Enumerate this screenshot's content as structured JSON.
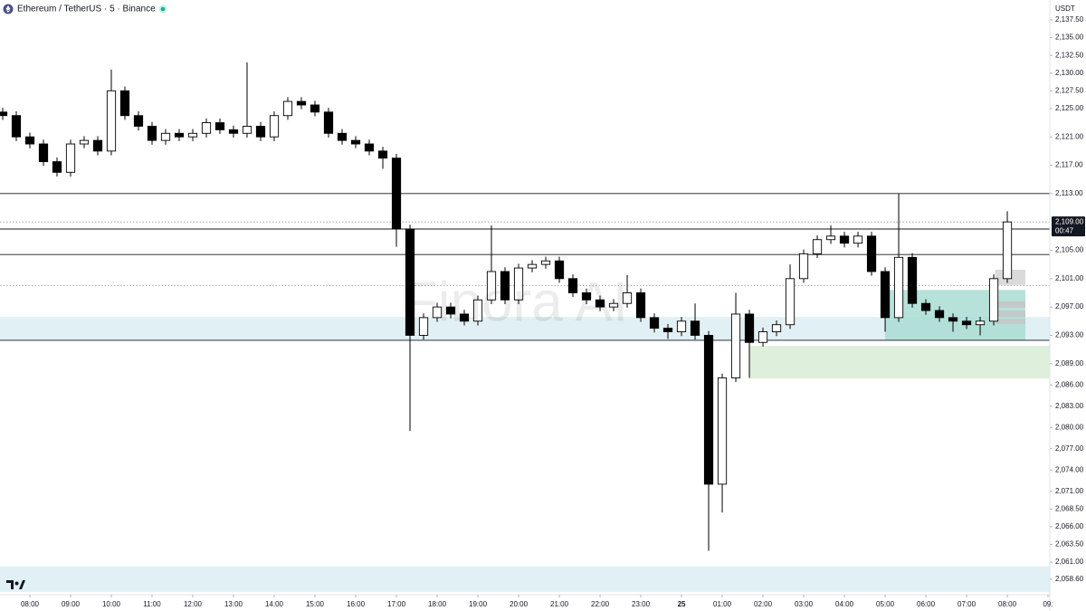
{
  "chart_data": {
    "type": "candlestick",
    "title": "Ethereum / TetherUS · 5 · Binance",
    "currency": "USDT",
    "watermark": "Finora AI",
    "up_color": "#ffffff",
    "down_color": "#000000",
    "wick_color": "#000000",
    "grid": false,
    "xlim": [
      -0.2,
      77.13
    ],
    "ylim": [
      2056.66,
      2140.31
    ],
    "xticks": [
      {
        "value": 2,
        "label": "08:00"
      },
      {
        "value": 5,
        "label": "09:00"
      },
      {
        "value": 8,
        "label": "10:00"
      },
      {
        "value": 11,
        "label": "11:00"
      },
      {
        "value": 14,
        "label": "12:00"
      },
      {
        "value": 17,
        "label": "13:00"
      },
      {
        "value": 20,
        "label": "14:00"
      },
      {
        "value": 23,
        "label": "15:00"
      },
      {
        "value": 26,
        "label": "16:00"
      },
      {
        "value": 29,
        "label": "17:00"
      },
      {
        "value": 32,
        "label": "18:00"
      },
      {
        "value": 35,
        "label": "19:00"
      },
      {
        "value": 38,
        "label": "20:00"
      },
      {
        "value": 41,
        "label": "21:00"
      },
      {
        "value": 44,
        "label": "22:00"
      },
      {
        "value": 47,
        "label": "23:00"
      },
      {
        "value": 50,
        "label": "25"
      },
      {
        "value": 53,
        "label": "01:00"
      },
      {
        "value": 56,
        "label": "02:00"
      },
      {
        "value": 59,
        "label": "03:00"
      },
      {
        "value": 62,
        "label": "04:00"
      },
      {
        "value": 65,
        "label": "05:00"
      },
      {
        "value": 68,
        "label": "06:00"
      },
      {
        "value": 71,
        "label": "07:00"
      },
      {
        "value": 74,
        "label": "08:00"
      },
      {
        "value": 77,
        "label": "09:"
      }
    ],
    "yticks": [
      {
        "value": 2137.5,
        "label": "2,137.50"
      },
      {
        "value": 2135,
        "label": "2,135.00"
      },
      {
        "value": 2132.5,
        "label": "2,132.50"
      },
      {
        "value": 2130,
        "label": "2,130.00"
      },
      {
        "value": 2127.5,
        "label": "2,127.50"
      },
      {
        "value": 2125,
        "label": "2,125.00"
      },
      {
        "value": 2121,
        "label": "2,121.00"
      },
      {
        "value": 2117,
        "label": "2,117.00"
      },
      {
        "value": 2113,
        "label": "2,113.00"
      },
      {
        "value": 2105,
        "label": "2,105.00"
      },
      {
        "value": 2101,
        "label": "2,101.00"
      },
      {
        "value": 2097,
        "label": "2,097.00"
      },
      {
        "value": 2093,
        "label": "2,093.00"
      },
      {
        "value": 2089,
        "label": "2,089.00"
      },
      {
        "value": 2086,
        "label": "2,086.00"
      },
      {
        "value": 2083,
        "label": "2,083.00"
      },
      {
        "value": 2080,
        "label": "2,080.00"
      },
      {
        "value": 2077,
        "label": "2,077.00"
      },
      {
        "value": 2074,
        "label": "2,074.00"
      },
      {
        "value": 2071,
        "label": "2,071.00"
      },
      {
        "value": 2068.5,
        "label": "2,068.50"
      },
      {
        "value": 2066,
        "label": "2,066.00"
      },
      {
        "value": 2063.5,
        "label": "2,063.50"
      },
      {
        "value": 2061,
        "label": "2,061.00"
      },
      {
        "value": 2058.6,
        "label": "2,058.60"
      }
    ],
    "current_price": {
      "value": 2109,
      "label": "2,109.00",
      "countdown": "00:47"
    },
    "levels": [
      {
        "value": 2113,
        "style": "solid"
      },
      {
        "value": 2108,
        "style": "solid"
      },
      {
        "value": 2104.4,
        "style": "solid"
      },
      {
        "value": 2092.3,
        "style": "solid"
      },
      {
        "value": 2109,
        "style": "dotted"
      },
      {
        "value": 2100,
        "style": "dotted"
      }
    ],
    "zones": [
      {
        "y": [
          2092.3,
          2095.6
        ],
        "x": [
          -0.2,
          77.13
        ],
        "color": "#dcedf2"
      },
      {
        "y": [
          2056.8,
          2060.4
        ],
        "x": [
          -0.2,
          77.13
        ],
        "color": "#dcedf2"
      },
      {
        "y": [
          2086.9,
          2091.5
        ],
        "x": [
          55,
          77.13
        ],
        "color": "#d8ecd5"
      },
      {
        "y": [
          2092.3,
          2099.4
        ],
        "x": [
          65,
          75.33
        ],
        "color": "#a9ddd3"
      },
      {
        "y": [
          2100.1,
          2102.25
        ],
        "x": [
          73.1,
          75.33
        ],
        "color": "#d4d4d4"
      },
      {
        "y": [
          2096.9,
          2097.8
        ],
        "x": [
          73.1,
          75.33
        ],
        "color": "#c4c4c4"
      },
      {
        "y": [
          2095.6,
          2096.5
        ],
        "x": [
          73.1,
          75.33
        ],
        "color": "#c4c4c4"
      },
      {
        "y": [
          2094.6,
          2095.3
        ],
        "x": [
          73.1,
          75.33
        ],
        "color": "#c4c4c4"
      }
    ],
    "open": [
      2124.5,
      2124,
      2121,
      2120,
      2117.5,
      2116,
      2120,
      2120.5,
      2119,
      2127.5,
      2124,
      2122.5,
      2120.5,
      2121.5,
      2121,
      2121.5,
      2123,
      2122,
      2121.5,
      2122.5,
      2121,
      2124,
      2126,
      2125.5,
      2124.5,
      2121.5,
      2120.5,
      2120,
      2119,
      2118,
      2108,
      2093,
      2095.5,
      2097,
      2096,
      2095,
      2098,
      2102,
      2098,
      2102.5,
      2103,
      2103.5,
      2101,
      2099,
      2098,
      2097,
      2097.5,
      2099,
      2095.5,
      2094,
      2093.5,
      2095,
      2093,
      2072,
      2087,
      2096,
      2092,
      2093.5,
      2094.5,
      2101,
      2104.5,
      2106.5,
      2107,
      2106,
      2107,
      2102,
      2095.5,
      2104,
      2097.5,
      2096.5,
      2095.5,
      2095,
      2094.5,
      2095,
      2101
    ],
    "high": [
      2125.1,
      2124.6,
      2121.6,
      2120.6,
      2118.1,
      2120.6,
      2121.1,
      2121.1,
      2130.5,
      2128.1,
      2124.6,
      2123.1,
      2122.1,
      2122.1,
      2122.1,
      2123.6,
      2123.6,
      2122.6,
      2131.5,
      2123.1,
      2124.6,
      2126.6,
      2126.6,
      2126.1,
      2125.1,
      2122.1,
      2121.1,
      2120.6,
      2119.6,
      2118.6,
      2108.6,
      2096.1,
      2097.6,
      2097.6,
      2096.6,
      2098.6,
      2108.5,
      2102.6,
      2103.1,
      2103.6,
      2104.1,
      2104.1,
      2101.6,
      2099.6,
      2098.6,
      2098.1,
      2101.5,
      2099.6,
      2096.1,
      2094.6,
      2095.6,
      2097.5,
      2093.6,
      2087.6,
      2099,
      2096.6,
      2094.1,
      2095.1,
      2103,
      2105.1,
      2107.1,
      2108.5,
      2107.6,
      2107.6,
      2107.6,
      2102.6,
      2113,
      2104.6,
      2098.1,
      2097.1,
      2096.1,
      2095.6,
      2095.6,
      2101.6,
      2110.5
    ],
    "low": [
      2123.4,
      2120.4,
      2119.4,
      2116.9,
      2115.4,
      2115.4,
      2119.4,
      2118.4,
      2118.4,
      2123.4,
      2121.9,
      2119.9,
      2119.9,
      2120.4,
      2120.4,
      2120.9,
      2121.4,
      2120.9,
      2120.9,
      2120.4,
      2120.4,
      2123.4,
      2124.9,
      2123.9,
      2120.9,
      2119.9,
      2119.4,
      2118.4,
      2116.5,
      2105.5,
      2079.5,
      2092.4,
      2094.9,
      2095.4,
      2094.4,
      2094.4,
      2097.4,
      2097.4,
      2097.4,
      2101.9,
      2102.4,
      2100.4,
      2098.4,
      2097.4,
      2096.4,
      2096.4,
      2096.9,
      2094.9,
      2093.4,
      2092.5,
      2092.9,
      2092.4,
      2062.6,
      2068,
      2086.4,
      2087,
      2091.4,
      2092.9,
      2093.9,
      2100.4,
      2103.9,
      2105.9,
      2105.4,
      2105.4,
      2101.4,
      2093.5,
      2094.9,
      2096.9,
      2095.9,
      2094.9,
      2093.5,
      2093.9,
      2093,
      2094.4,
      2100.4
    ],
    "close": [
      2124,
      2121,
      2120,
      2117.5,
      2116,
      2120,
      2120.5,
      2119,
      2127.5,
      2124,
      2122.5,
      2120.5,
      2121.5,
      2121,
      2121.5,
      2123,
      2122,
      2121.5,
      2122.5,
      2121,
      2124,
      2126,
      2125.5,
      2124.5,
      2121.5,
      2120.5,
      2120,
      2119,
      2118,
      2108,
      2093,
      2095.5,
      2097,
      2096,
      2095,
      2098,
      2102,
      2098,
      2102.5,
      2103,
      2103.5,
      2101,
      2099,
      2098,
      2097,
      2097.5,
      2099,
      2095.5,
      2094,
      2093.5,
      2095,
      2093,
      2072,
      2087,
      2096,
      2092,
      2093.5,
      2094.5,
      2101,
      2104.5,
      2106.5,
      2107,
      2106,
      2107,
      2102,
      2095.5,
      2104,
      2097.5,
      2096.5,
      2095.5,
      2095,
      2094.5,
      2095,
      2101,
      2109
    ]
  }
}
